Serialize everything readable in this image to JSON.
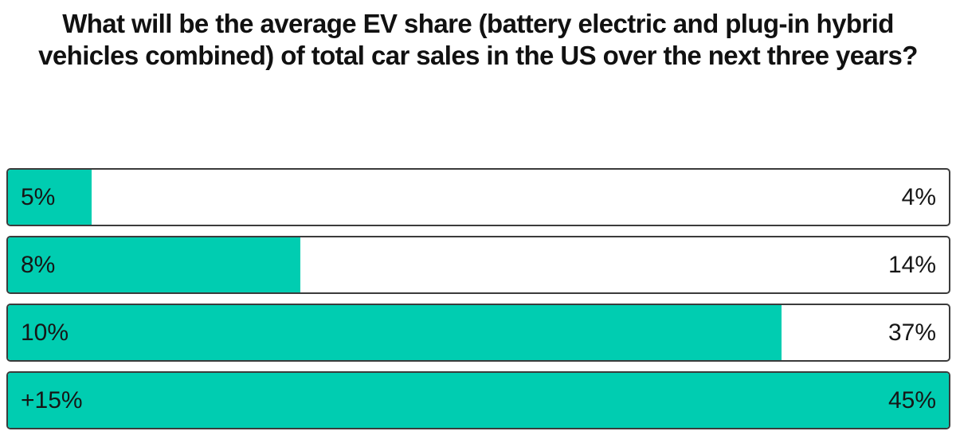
{
  "title": "What will be the average EV share (battery electric and plug-in hybrid vehicles combined) of total car sales in the US over the next three years?",
  "colors": {
    "bar_fill": "#00cdb1",
    "bar_border": "#3b3b3b",
    "text": "#161616",
    "background": "#ffffff"
  },
  "chart_data": {
    "type": "bar",
    "orientation": "horizontal",
    "title": "What will be the average EV share (battery electric and plug-in hybrid vehicles combined) of total car sales in the US over the next three years?",
    "categories": [
      "5%",
      "8%",
      "10%",
      "+15%"
    ],
    "values": [
      4,
      14,
      37,
      45
    ],
    "value_labels": [
      "4%",
      "14%",
      "37%",
      "45%"
    ],
    "max_value": 45,
    "unit": "%",
    "xlabel": "",
    "ylabel": "",
    "grid": false,
    "legend": "none"
  },
  "bars": [
    {
      "label": "5%",
      "value": 4,
      "value_label": "4%"
    },
    {
      "label": "8%",
      "value": 14,
      "value_label": "14%"
    },
    {
      "label": "10%",
      "value": 37,
      "value_label": "37%"
    },
    {
      "label": "+15%",
      "value": 45,
      "value_label": "45%"
    }
  ]
}
